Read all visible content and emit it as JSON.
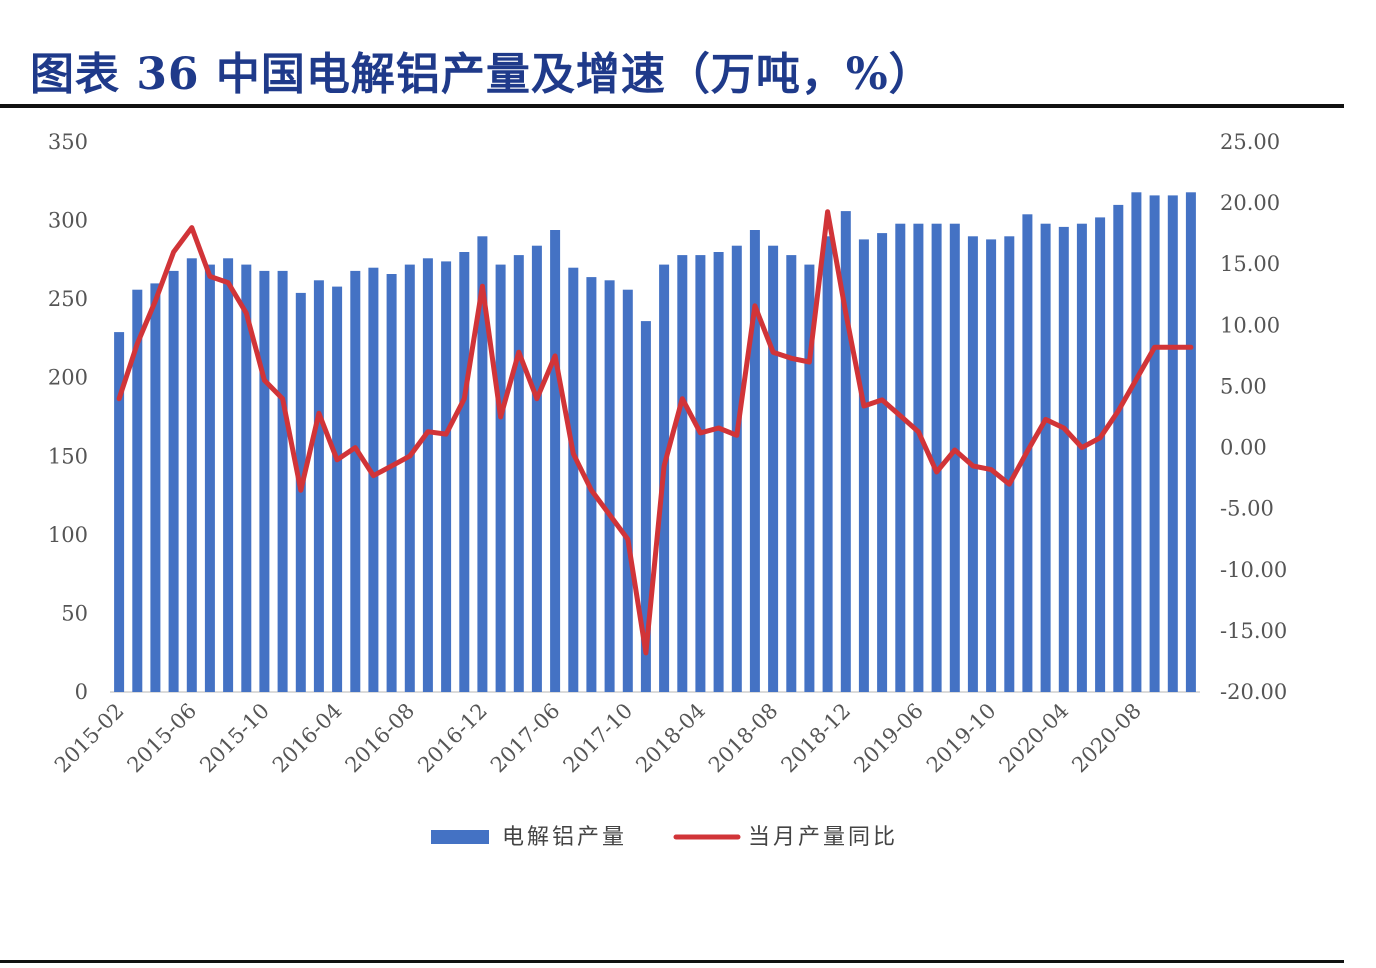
{
  "title": "图表 36  中国电解铝产量及增速（万吨，%）",
  "chart_data": {
    "type": "bar+line",
    "left_axis": {
      "ylim": [
        0,
        350
      ],
      "ticks": [
        "0",
        "50",
        "100",
        "150",
        "200",
        "250",
        "300",
        "350"
      ]
    },
    "right_axis": {
      "ylim": [
        -20,
        25
      ],
      "ticks": [
        "-20.00",
        "-15.00",
        "-10.00",
        "-5.00",
        "0.00",
        "5.00",
        "10.00",
        "15.00",
        "20.00",
        "25.00"
      ]
    },
    "x_tick_labels": [
      "2015-02",
      "2015-06",
      "2015-10",
      "2016-04",
      "2016-08",
      "2016-12",
      "2017-06",
      "2017-10",
      "2018-04",
      "2018-08",
      "2018-12",
      "2019-06",
      "2019-10",
      "2020-04",
      "2020-08"
    ],
    "x_tick_index": [
      0,
      4,
      8,
      12,
      16,
      20,
      24,
      28,
      32,
      36,
      40,
      44,
      48,
      52,
      56
    ],
    "x_categories": [
      "2015-02",
      "2015-03",
      "2015-04",
      "2015-05",
      "2015-06",
      "2015-07",
      "2015-08",
      "2015-09",
      "2015-10",
      "2015-11",
      "2015-12",
      "2016-02",
      "2016-03",
      "2016-04",
      "2016-05",
      "2016-06",
      "2016-07",
      "2016-08",
      "2016-09",
      "2016-10",
      "2016-11",
      "2016-12",
      "2017-03",
      "2017-04",
      "2017-05",
      "2017-06",
      "2017-07",
      "2017-08",
      "2017-09",
      "2017-10",
      "2017-11",
      "2017-12",
      "2018-03",
      "2018-04",
      "2018-05",
      "2018-06",
      "2018-07",
      "2018-08",
      "2018-09",
      "2018-10",
      "2018-11",
      "2018-12",
      "2019-03",
      "2019-04",
      "2019-05",
      "2019-06",
      "2019-07",
      "2019-08",
      "2019-09",
      "2019-10",
      "2019-11",
      "2019-12",
      "2020-03",
      "2020-04",
      "2020-05",
      "2020-06",
      "2020-07",
      "2020-08",
      "2020-09",
      "2020-10"
    ],
    "series": [
      {
        "name": "电解铝产量",
        "type": "bar",
        "axis": "left",
        "color": "#4472c4",
        "values": [
          229,
          256,
          260,
          268,
          276,
          272,
          276,
          272,
          268,
          268,
          254,
          262,
          258,
          268,
          270,
          266,
          272,
          276,
          274,
          280,
          290,
          272,
          278,
          284,
          294,
          270,
          264,
          262,
          256,
          236,
          272,
          278,
          278,
          280,
          284,
          294,
          284,
          278,
          272,
          290,
          306,
          288,
          292,
          298,
          298,
          298,
          298,
          290,
          288,
          290,
          304,
          298,
          296,
          298,
          302,
          310,
          318,
          316,
          316,
          318
        ]
      },
      {
        "name": "当月产量同比",
        "type": "line",
        "axis": "right",
        "color": "#d13438",
        "values": [
          4.0,
          8.5,
          12.0,
          16.0,
          18.0,
          14.0,
          13.5,
          11.0,
          5.5,
          4.0,
          -3.5,
          2.8,
          -1.0,
          0.0,
          -2.3,
          -1.5,
          -0.7,
          1.3,
          1.1,
          4.0,
          13.2,
          2.5,
          7.8,
          4.0,
          7.5,
          -0.5,
          -3.5,
          -5.5,
          -7.5,
          -16.8,
          -1.5,
          4.0,
          1.2,
          1.6,
          1.0,
          11.6,
          7.8,
          7.3,
          7.0,
          19.3,
          11.0,
          3.4,
          3.9,
          2.6,
          1.3,
          -2.0,
          -0.2,
          -1.5,
          -1.8,
          -3.0,
          -0.3,
          2.3,
          1.6,
          0.0,
          0.8,
          3.0,
          5.6,
          8.2,
          8.2,
          8.2
        ]
      }
    ],
    "legend": {
      "placement": "bottom-center",
      "entries": [
        "电解铝产量",
        "当月产量同比"
      ]
    }
  }
}
